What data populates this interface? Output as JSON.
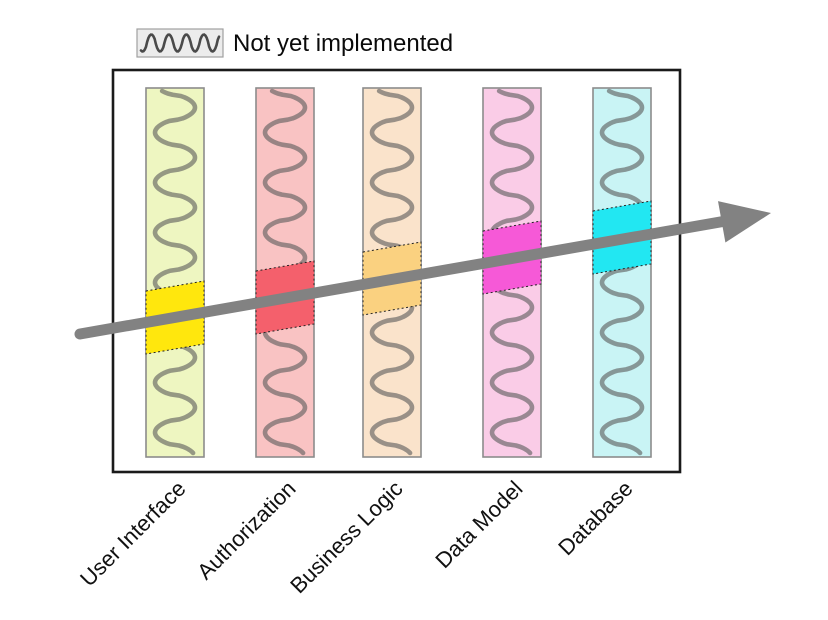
{
  "legend": {
    "label": "Not yet implemented",
    "swatch_wave_color": "#4a4a4a"
  },
  "diagram": {
    "frame_color": "#1a1a1a",
    "arrow_color": "#828282",
    "wave_color": "#5d5d5d",
    "layers": [
      {
        "label": "User Interface",
        "bg": "#EEF6C1",
        "highlight": "#FFE70D"
      },
      {
        "label": "Authorization",
        "bg": "#F9C3C3",
        "highlight": "#F4606C"
      },
      {
        "label": "Business Logic",
        "bg": "#FAE3CB",
        "highlight": "#FAD180"
      },
      {
        "label": "Data Model",
        "bg": "#FACCE7",
        "highlight": "#F659D7"
      },
      {
        "label": "Database",
        "bg": "#C9F4F5",
        "highlight": "#22E7F2"
      }
    ]
  }
}
